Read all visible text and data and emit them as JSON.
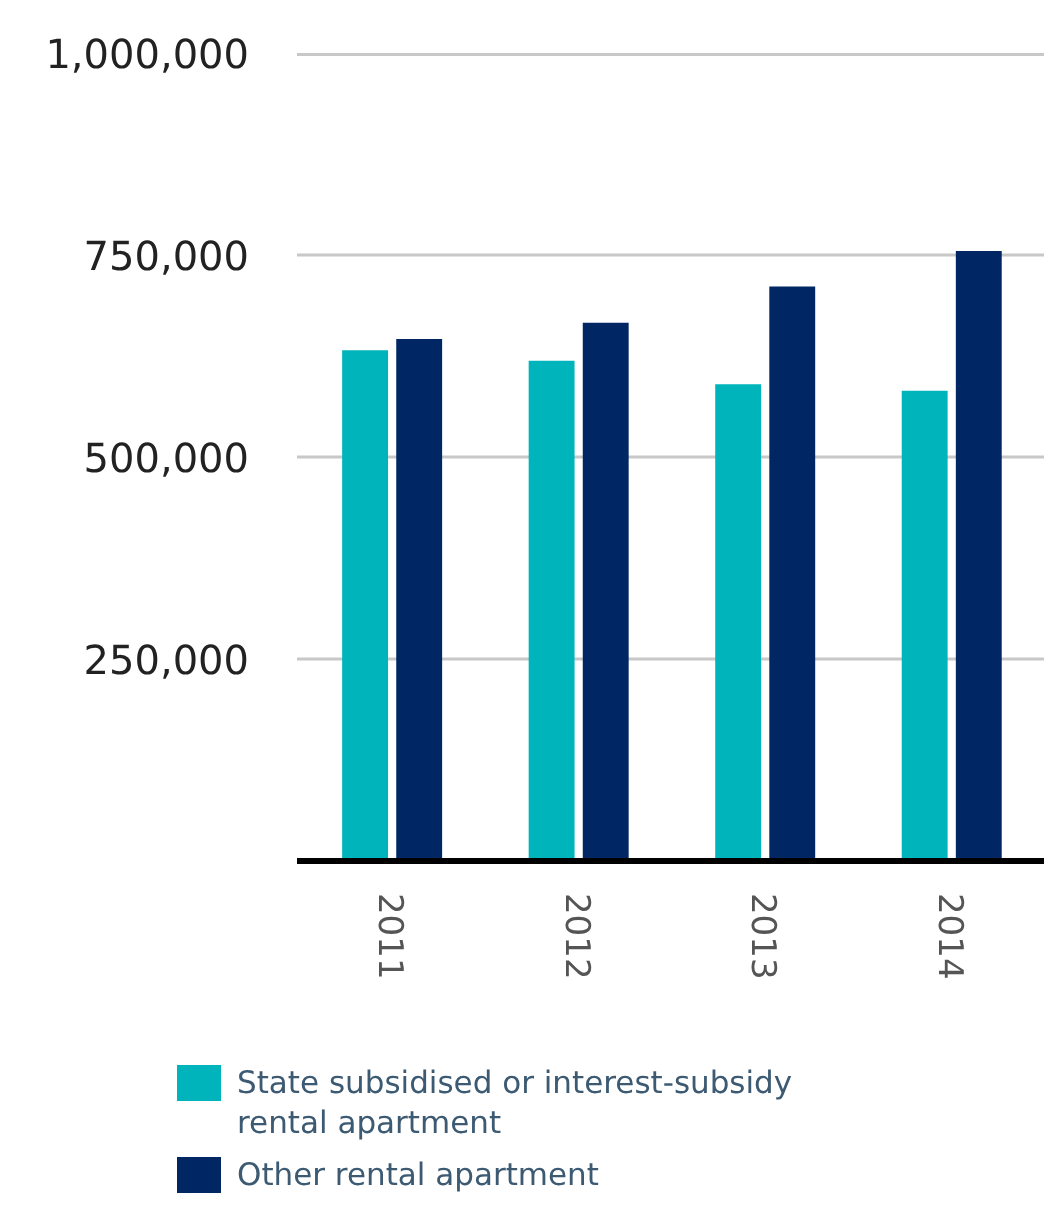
{
  "chart_data": {
    "type": "bar",
    "categories": [
      "2011",
      "2012",
      "2013",
      "2014"
    ],
    "series": [
      {
        "name": "State subsidised or interest-subsidy rental apartment",
        "color": "#00b4bb",
        "values": [
          632000,
          619000,
          590000,
          582000
        ]
      },
      {
        "name": "Other rental apartment",
        "color": "#002663",
        "values": [
          646000,
          666000,
          711000,
          755000
        ]
      }
    ],
    "ylim": [
      0,
      1000000
    ],
    "yticks": [
      {
        "value": 0,
        "label": null
      },
      {
        "value": 250000,
        "label": "250,000"
      },
      {
        "value": 500000,
        "label": "500,000"
      },
      {
        "value": 750000,
        "label": "750,000"
      },
      {
        "value": 1000000,
        "label": "1,000,000"
      }
    ],
    "grid": "y",
    "legend": "bottom"
  }
}
